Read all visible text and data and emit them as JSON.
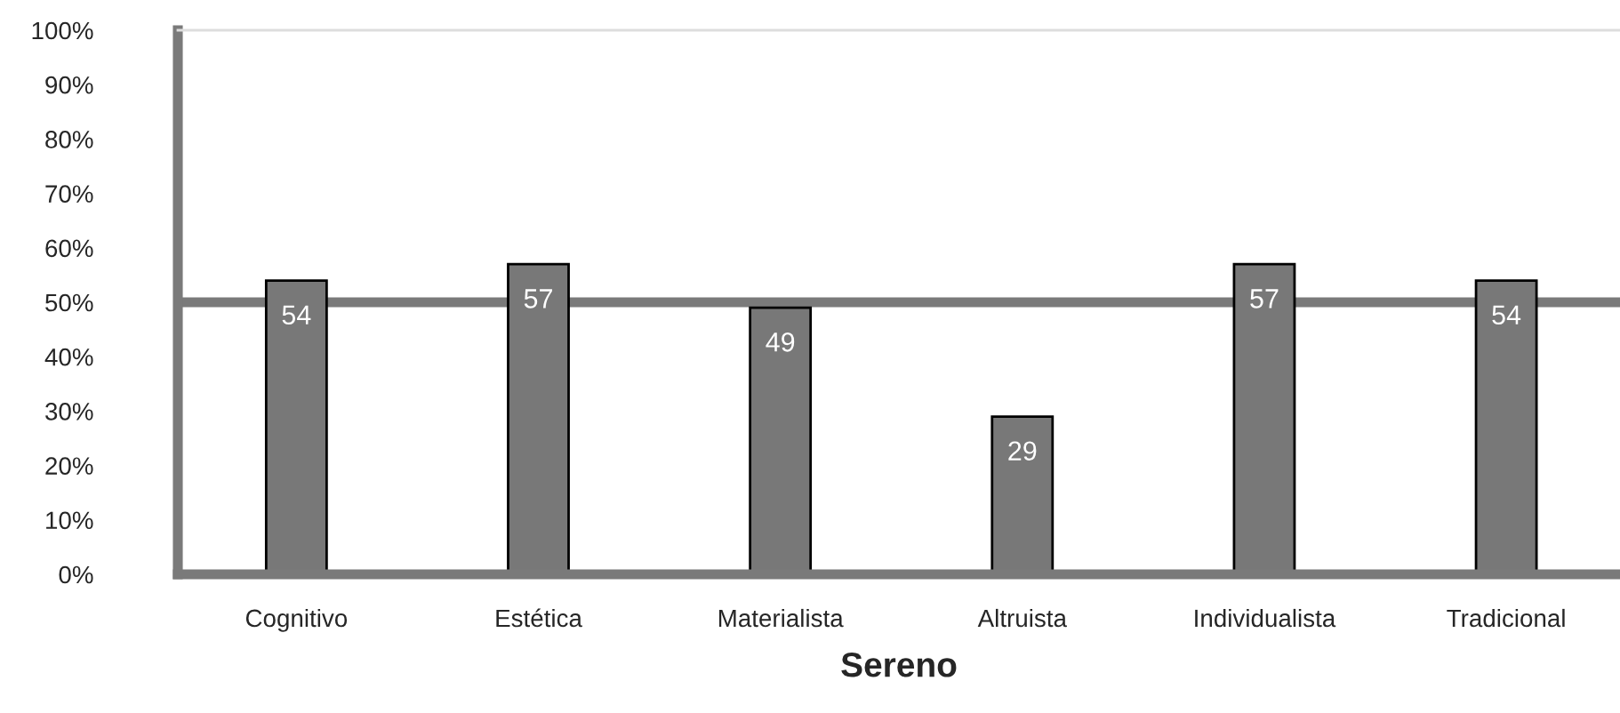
{
  "chart_data": {
    "type": "bar",
    "xlabel": "Sereno",
    "categories": [
      "Cognitivo",
      "Estética",
      "Materialista",
      "Altruista",
      "Individualista",
      "Tradicional"
    ],
    "values": [
      54,
      57,
      49,
      29,
      57,
      54
    ],
    "color": "#787878",
    "data_labels": true,
    "ylim": [
      0,
      100
    ],
    "yticks": [
      {
        "value": 0,
        "label": "0%"
      },
      {
        "value": 10,
        "label": "10%"
      },
      {
        "value": 20,
        "label": "20%"
      },
      {
        "value": 30,
        "label": "30%"
      },
      {
        "value": 40,
        "label": "40%"
      },
      {
        "value": 50,
        "label": "50%"
      },
      {
        "value": 60,
        "label": "60%"
      },
      {
        "value": 70,
        "label": "70%"
      },
      {
        "value": 80,
        "label": "80%"
      },
      {
        "value": 90,
        "label": "90%"
      },
      {
        "value": 100,
        "label": "100%"
      }
    ],
    "ref_lines": [
      {
        "axis": "y",
        "value": 50,
        "color": "#7a7a7a"
      }
    ],
    "grid": false,
    "legend": false
  }
}
